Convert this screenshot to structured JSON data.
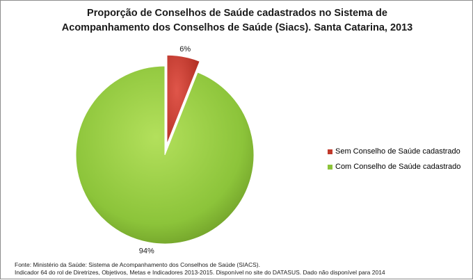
{
  "chart_data": {
    "type": "pie",
    "title_lines": [
      "Proporção de Conselhos de Saúde cadastrados no Sistema de",
      "Acompanhamento  dos Conselhos de Saúde (Siacs). Santa Catarina,  2013"
    ],
    "slices": [
      {
        "label": "Sem Conselho de Saúde cadastrado",
        "value": 6,
        "data_label": "6%",
        "color": "#c0392b"
      },
      {
        "label": "Com Conselho de Saúde cadastrado",
        "value": 94,
        "data_label": "94%",
        "color": "#8cc43a"
      }
    ],
    "legend_position": "right",
    "exploded_slice": 0
  },
  "source": {
    "lines": [
      "Fonte: Ministério da Saúde:  Sistema de Acompanhamento dos Conselhos de Saúde (SIACS).",
      "Indicador 64 do rol de Diretrizes, Objetivos, Metas e Indicadores 2013-2015. Disponível no site do DATASUS. Dado não disponível para 2014"
    ]
  }
}
